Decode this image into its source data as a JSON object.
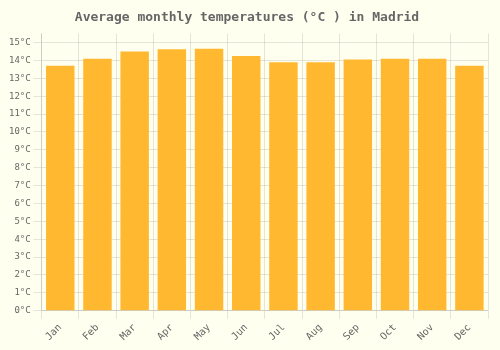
{
  "chart_data": {
    "type": "bar",
    "title": "Average monthly temperatures (°C ) in Madrid",
    "categories": [
      "Jan",
      "Feb",
      "Mar",
      "Apr",
      "May",
      "Jun",
      "Jul",
      "Aug",
      "Sep",
      "Oct",
      "Nov",
      "Dec"
    ],
    "values": [
      13.7,
      14.1,
      14.5,
      14.62,
      14.65,
      14.25,
      13.9,
      13.9,
      14.05,
      14.1,
      14.1,
      13.7
    ],
    "color": "#FFB830",
    "ylim": [
      0,
      15.5
    ],
    "yticks": [
      {
        "value": 0,
        "label": "0°C"
      },
      {
        "value": 1,
        "label": "1°C"
      },
      {
        "value": 2,
        "label": "2°C"
      },
      {
        "value": 3,
        "label": "3°C"
      },
      {
        "value": 4,
        "label": "4°C"
      },
      {
        "value": 5,
        "label": "5°C"
      },
      {
        "value": 6,
        "label": "6°C"
      },
      {
        "value": 7,
        "label": "7°C"
      },
      {
        "value": 8,
        "label": "8°C"
      },
      {
        "value": 9,
        "label": "9°C"
      },
      {
        "value": 10,
        "label": "10°C"
      },
      {
        "value": 11,
        "label": "11°C"
      },
      {
        "value": 12,
        "label": "12°C"
      },
      {
        "value": 13,
        "label": "13°C"
      },
      {
        "value": 14,
        "label": "14°C"
      },
      {
        "value": 15,
        "label": "15°C"
      }
    ],
    "grid": true
  }
}
